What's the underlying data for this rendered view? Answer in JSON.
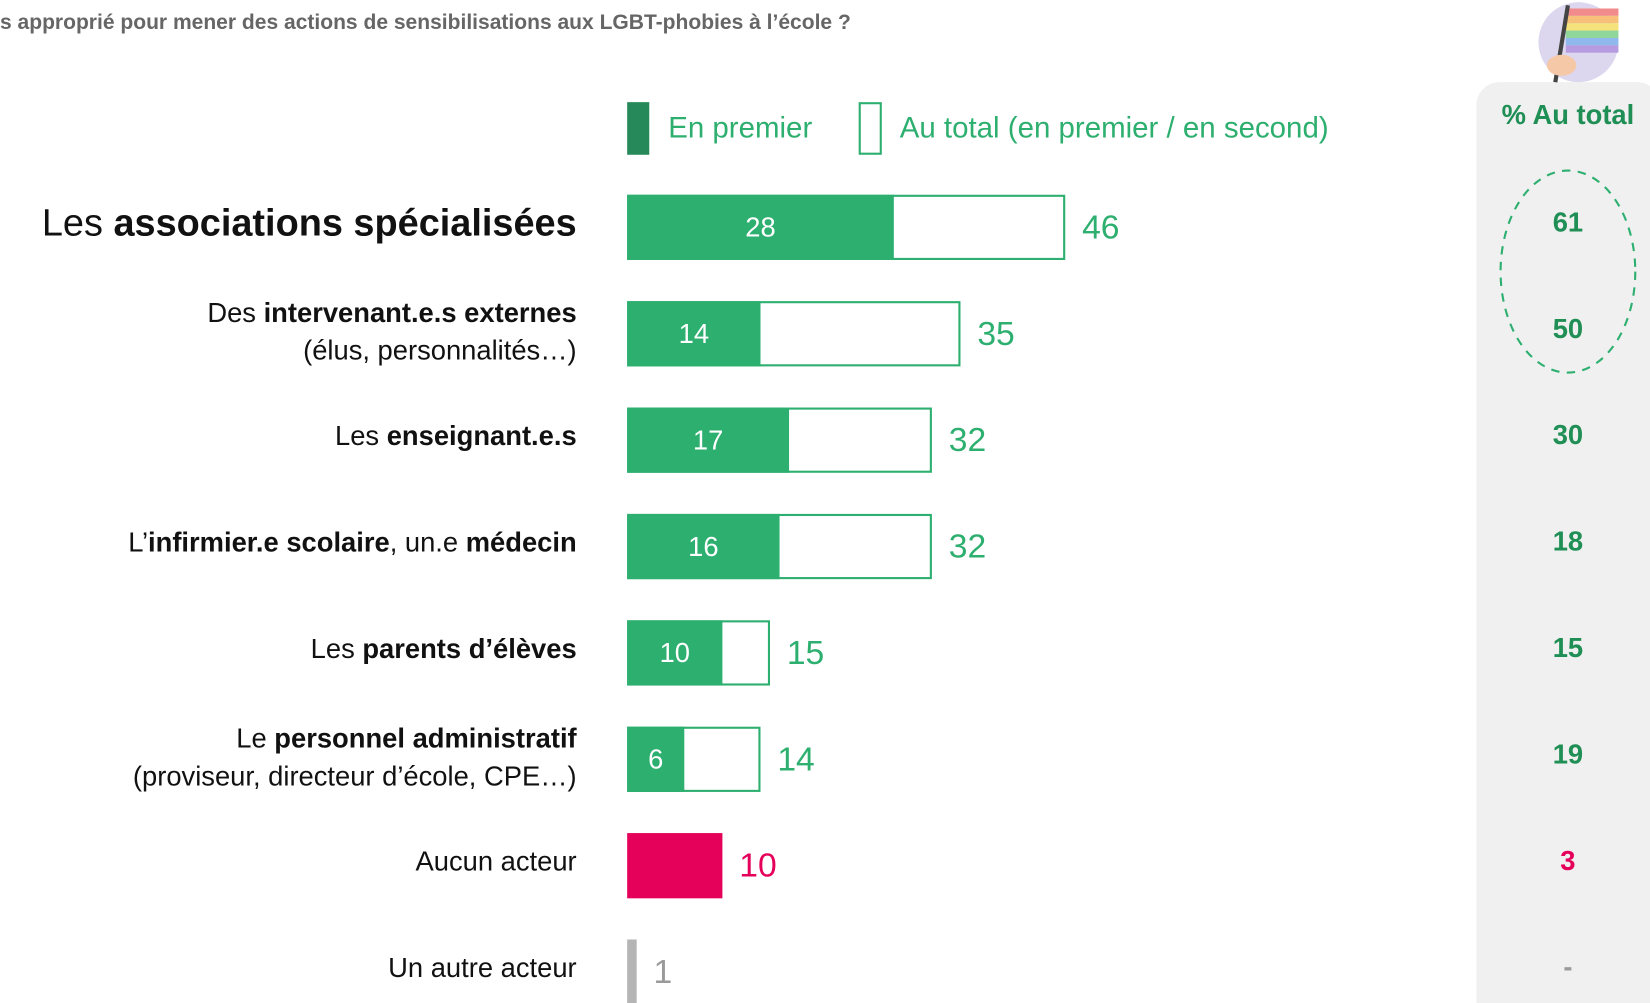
{
  "chart_data": {
    "type": "bar",
    "title": "s approprié pour mener des actions de sensibilisations aux LGBT-phobies à l’école ?",
    "categories": [
      {
        "lines": [
          [
            {
              "t": "Les "
            },
            {
              "b": "associations spécialisées"
            }
          ]
        ]
      },
      {
        "lines": [
          [
            {
              "t": "Des "
            },
            {
              "b": "intervenant.e.s externes"
            }
          ],
          [
            {
              "t": "(élus, personnalités…)"
            }
          ]
        ]
      },
      {
        "lines": [
          [
            {
              "t": "Les "
            },
            {
              "b": "enseignant.e.s"
            }
          ]
        ]
      },
      {
        "lines": [
          [
            {
              "t": "L’"
            },
            {
              "b": "infirmier.e scolaire"
            },
            {
              "t": ", un.e "
            },
            {
              "b": "médecin"
            }
          ]
        ]
      },
      {
        "lines": [
          [
            {
              "t": "Les "
            },
            {
              "b": "parents d’élèves"
            }
          ]
        ]
      },
      {
        "lines": [
          [
            {
              "t": "Le "
            },
            {
              "b": "personnel administratif"
            }
          ],
          [
            {
              "t": "(proviseur, directeur d’école, CPE…)"
            }
          ]
        ]
      },
      {
        "lines": [
          [
            {
              "t": "Aucun acteur"
            }
          ]
        ]
      },
      {
        "lines": [
          [
            {
              "t": "Un autre acteur"
            }
          ]
        ]
      }
    ],
    "series": [
      {
        "name": "En premier",
        "color": "#2daf6f",
        "legend_color": "#25895a",
        "values": [
          28,
          14,
          17,
          16,
          10,
          6,
          null,
          null
        ]
      },
      {
        "name": "Au total (en premier / en second)",
        "color": "#2daf6f",
        "label_colors": [
          "#2daf6f",
          "#2daf6f",
          "#2daf6f",
          "#2daf6f",
          "#2daf6f",
          "#2daf6f",
          "#e5005a",
          "#9a9a9a"
        ],
        "point_colors": [
          null,
          null,
          null,
          null,
          null,
          null,
          "#e5005a",
          "#b5b5b5"
        ],
        "values": [
          46,
          35,
          32,
          32,
          15,
          14,
          10,
          1
        ]
      }
    ],
    "comparison": {
      "title": "% Au total",
      "values": [
        61,
        50,
        30,
        18,
        15,
        19,
        3,
        null
      ],
      "value_labels": [
        "61",
        "50",
        "30",
        "18",
        "15",
        "19",
        "3",
        "-"
      ],
      "colors": [
        "#1f8f55",
        "#1f8f55",
        "#1f8f55",
        "#1f8f55",
        "#1f8f55",
        "#1f8f55",
        "#e5005a",
        "#9a9a9a"
      ]
    }
  }
}
